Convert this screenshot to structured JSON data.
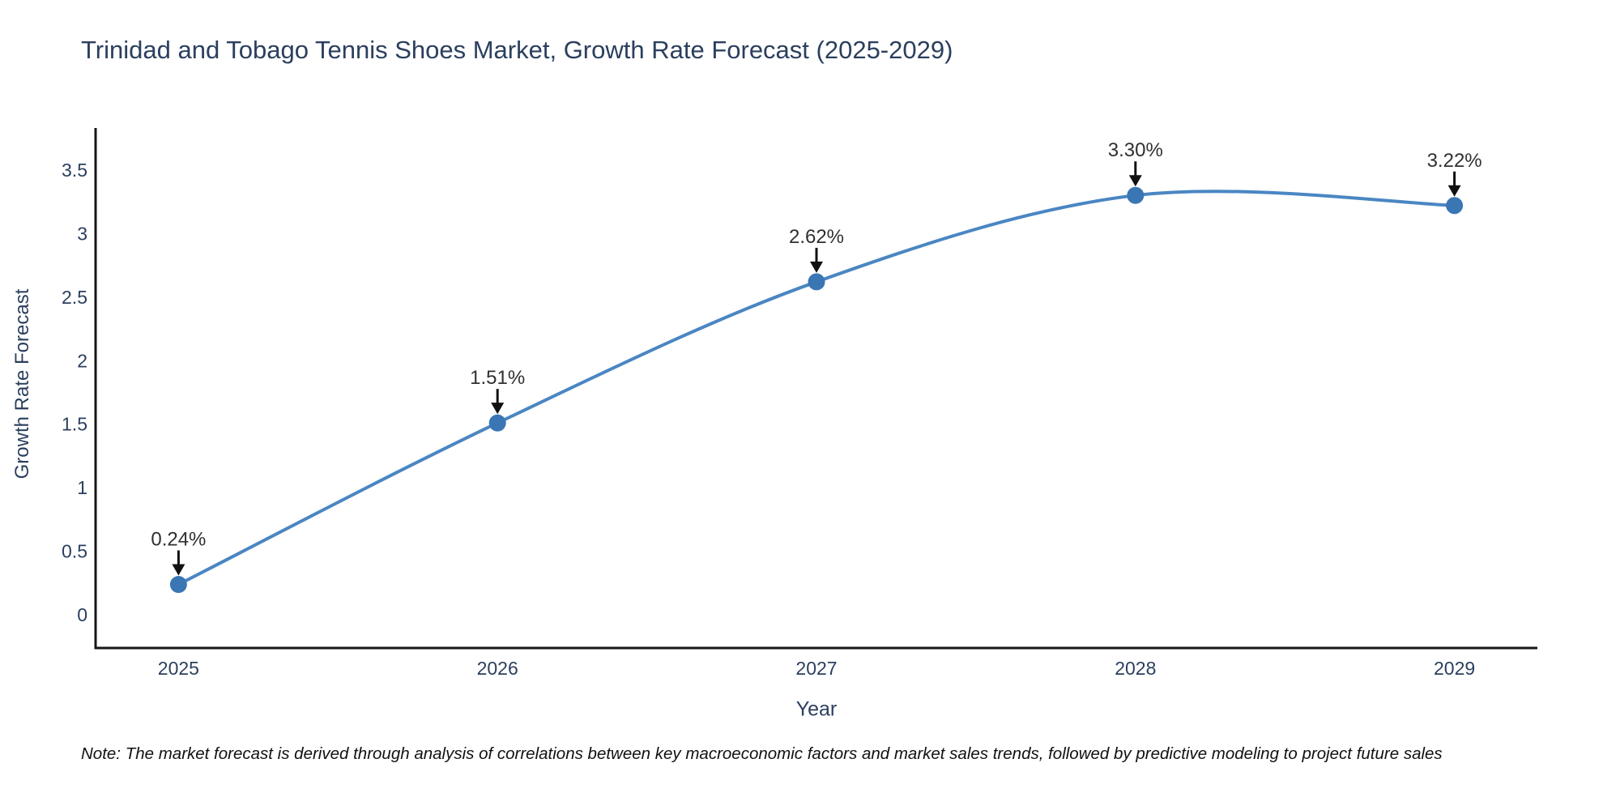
{
  "title": {
    "text": "Trinidad and Tobago Tennis Shoes Market, Growth Rate Forecast (2025-2029)",
    "color": "#2b3f5e"
  },
  "note": {
    "text": "Note: The market forecast is derived through analysis of correlations between key macroeconomic factors and market sales trends, followed by predictive modeling to project future sales"
  },
  "chart_data": {
    "type": "line",
    "title": "Trinidad and Tobago Tennis Shoes Market, Growth Rate Forecast (2025-2029)",
    "x": [
      2025,
      2026,
      2027,
      2028,
      2029
    ],
    "series": [
      {
        "name": "Growth Rate Forecast",
        "values": [
          0.24,
          1.51,
          2.62,
          3.3,
          3.22
        ]
      }
    ],
    "annotations": [
      "0.24%",
      "1.51%",
      "2.62%",
      "3.30%",
      "3.22%"
    ],
    "xlabel": "Year",
    "ylabel": "Growth Rate Forecast",
    "x_ticks": [
      "2025",
      "2026",
      "2027",
      "2028",
      "2029"
    ],
    "y_ticks": [
      "0",
      "0.5",
      "1",
      "1.5",
      "2",
      "2.5",
      "3",
      "3.5"
    ],
    "xlim": [
      2024.74,
      2029.26
    ],
    "ylim": [
      -0.26,
      3.83
    ],
    "grid": false,
    "legend": "none",
    "line_shape": "spline",
    "colors": {
      "line": "#4a86c2",
      "marker": "#3a76b4",
      "axis": "#161616",
      "tick_text": "#2b3f5e",
      "annotation_text": "#303030",
      "arrow": "#111111",
      "background": "#ffffff"
    }
  }
}
